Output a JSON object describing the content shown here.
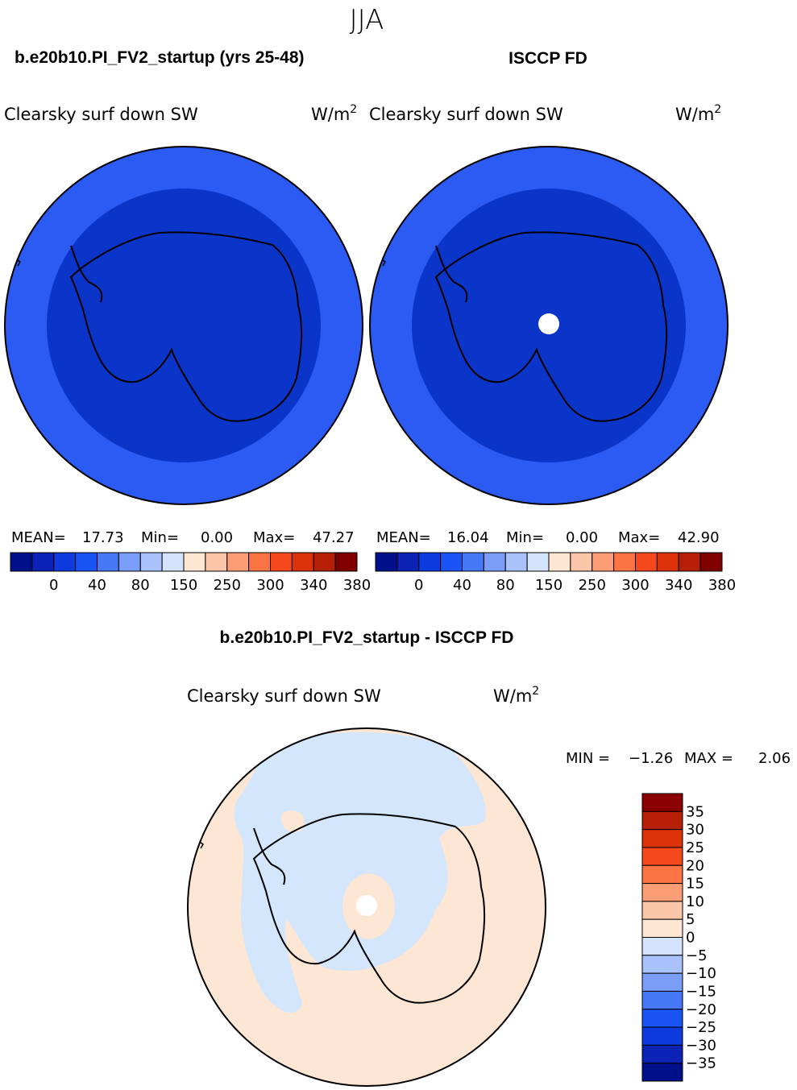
{
  "figure": {
    "season": "JJA",
    "model_title": "b.e20b10.PI_FV2_startup (yrs 25-48)",
    "obs_title": "ISCCP FD",
    "diff_title": "b.e20b10.PI_FV2_startup - ISCCP FD"
  },
  "panels": [
    {
      "id": "model",
      "variable": "Clearsky surf down SW",
      "units_base": "W/m",
      "units_exp": "2",
      "stats": {
        "mean_label": "MEAN=",
        "mean": "17.73",
        "min_label": "Min=",
        "min": "0.00",
        "max_label": "Max=",
        "max": "47.27"
      },
      "field": {
        "outer_ring_color": "#2b5bf2",
        "inner_color": "#0b34c8",
        "pole_hole": false
      }
    },
    {
      "id": "obs",
      "variable": "Clearsky surf down SW",
      "units_base": "W/m",
      "units_exp": "2",
      "stats": {
        "mean_label": "MEAN=",
        "mean": "16.04",
        "min_label": "Min=",
        "min": "0.00",
        "max_label": "Max=",
        "max": "42.90"
      },
      "field": {
        "outer_ring_color": "#2b5bf2",
        "inner_color": "#0b34c8",
        "pole_hole": true
      }
    }
  ],
  "colorbar_horizontal": {
    "colors": [
      "#000f8a",
      "#0a23b4",
      "#0d3be0",
      "#1a54f5",
      "#4677f5",
      "#7a9df7",
      "#a9c2fb",
      "#d4e3fb",
      "#fde6d2",
      "#fcc6a8",
      "#fb9e76",
      "#fb7544",
      "#f5481c",
      "#dd3209",
      "#b51f05",
      "#800000"
    ],
    "labels": [
      "0",
      "40",
      "80",
      "150",
      "250",
      "300",
      "340",
      "380"
    ]
  },
  "diff_panel": {
    "variable": "Clearsky surf down SW",
    "units_base": "W/m",
    "units_exp": "2",
    "stats": {
      "min_label": "MIN =",
      "min": "−1.26",
      "max_label": "MAX =",
      "max": "2.06"
    },
    "field": {
      "positive_color": "#fde7d4",
      "negative_color": "#d4e6fb"
    }
  },
  "colorbar_vertical": {
    "colors_top_to_bottom": [
      "#8b0000",
      "#b51f05",
      "#dd3209",
      "#f5481c",
      "#fb7544",
      "#fb9e76",
      "#fcc6a8",
      "#fde6d2",
      "#d4e3fb",
      "#a9c2fb",
      "#7a9df7",
      "#4677f5",
      "#1a54f5",
      "#0d3be0",
      "#0a23b4",
      "#000f8a"
    ],
    "labels_top_to_bottom": [
      "35",
      "30",
      "25",
      "20",
      "15",
      "10",
      "5",
      "0",
      "−5",
      "−10",
      "−15",
      "−20",
      "−25",
      "−30",
      "−35"
    ]
  }
}
